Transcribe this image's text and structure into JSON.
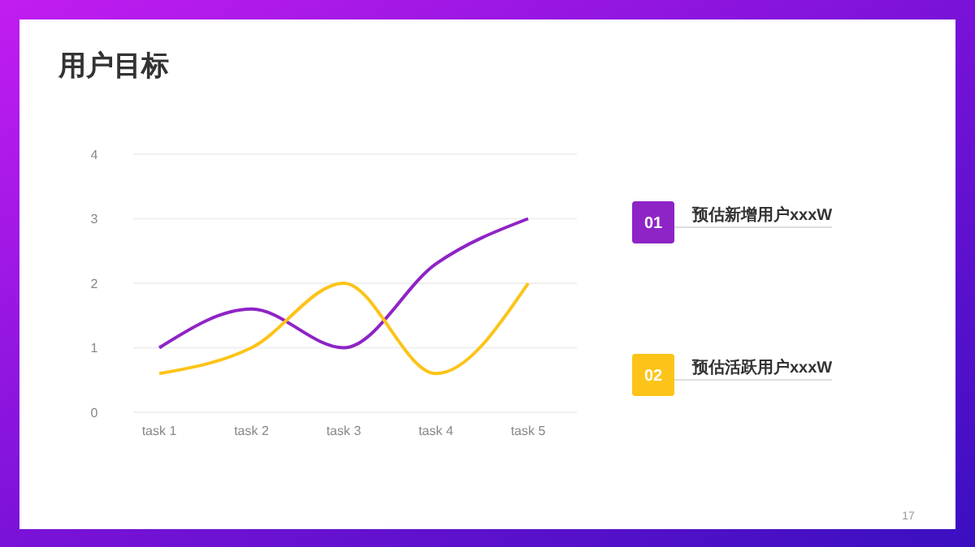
{
  "chart_data": {
    "type": "line",
    "title": "用户目标",
    "categories": [
      "task 1",
      "task 2",
      "task 3",
      "task 4",
      "task 5"
    ],
    "series": [
      {
        "name": "预估新增用户xxxW",
        "color": "#8e24c6",
        "values": [
          1,
          1.6,
          1,
          2.3,
          3
        ]
      },
      {
        "name": "预估活跃用户xxxW",
        "color": "#fcc419",
        "values": [
          0.6,
          1,
          2,
          0.6,
          2
        ]
      }
    ],
    "ylim": [
      0,
      4
    ],
    "yticks": [
      0,
      1,
      2,
      3,
      4
    ],
    "grid": "y",
    "legend": "right",
    "marker": "none",
    "annotations": [
      "01",
      "02",
      "17"
    ]
  }
}
